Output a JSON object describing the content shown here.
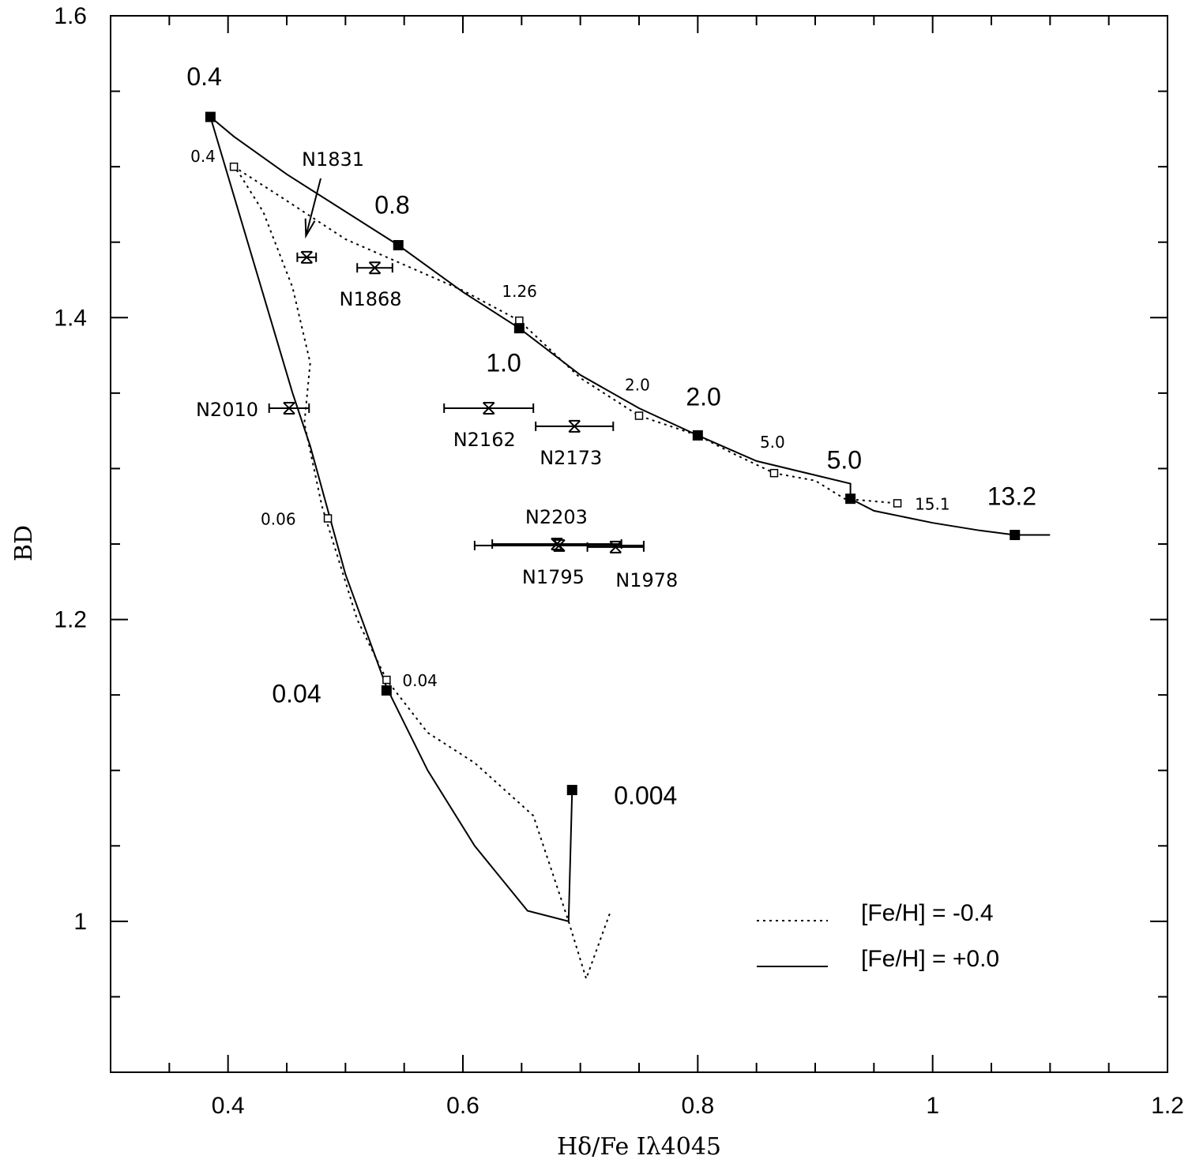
{
  "chart_data": {
    "type": "line",
    "xlabel": "Hδ/Fe Iλ4045",
    "ylabel": "BD",
    "xlim": [
      0.3,
      1.2
    ],
    "ylim": [
      0.9,
      1.6
    ],
    "x_ticks": [
      "0.4",
      "0.6",
      "0.8",
      "1",
      "1.2"
    ],
    "y_ticks": [
      "1",
      "1.2",
      "1.4",
      "1.6"
    ],
    "grid": false,
    "legend_position": "bottom-right",
    "series": [
      {
        "name": "[Fe/H] = -0.4",
        "style": "dotted",
        "line": [
          [
            0.725,
            1.005
          ],
          [
            0.705,
            0.962
          ],
          [
            0.69,
            1.0
          ],
          [
            0.66,
            1.07
          ],
          [
            0.61,
            1.105
          ],
          [
            0.57,
            1.125
          ],
          [
            0.535,
            1.16
          ],
          [
            0.51,
            1.2
          ],
          [
            0.48,
            1.275
          ],
          [
            0.465,
            1.33
          ],
          [
            0.47,
            1.37
          ],
          [
            0.455,
            1.42
          ],
          [
            0.43,
            1.47
          ],
          [
            0.41,
            1.495
          ],
          [
            0.405,
            1.5
          ],
          [
            0.445,
            1.48
          ],
          [
            0.5,
            1.452
          ],
          [
            0.55,
            1.435
          ],
          [
            0.6,
            1.418
          ],
          [
            0.648,
            1.398
          ],
          [
            0.7,
            1.36
          ],
          [
            0.75,
            1.335
          ],
          [
            0.8,
            1.322
          ],
          [
            0.83,
            1.31
          ],
          [
            0.865,
            1.297
          ],
          [
            0.9,
            1.292
          ],
          [
            0.925,
            1.28
          ],
          [
            0.97,
            1.277
          ]
        ],
        "markers": [
          {
            "x": 0.405,
            "y": 1.5,
            "label": "0.4"
          },
          {
            "x": 0.648,
            "y": 1.398,
            "label": "1.26"
          },
          {
            "x": 0.75,
            "y": 1.335,
            "label": "2.0"
          },
          {
            "x": 0.865,
            "y": 1.297,
            "label": "5.0"
          },
          {
            "x": 0.97,
            "y": 1.277,
            "label": "15.1"
          },
          {
            "x": 0.485,
            "y": 1.267,
            "label": "0.06"
          },
          {
            "x": 0.535,
            "y": 1.16,
            "label": "0.04"
          }
        ]
      },
      {
        "name": "[Fe/H] = +0.0",
        "style": "solid",
        "line": [
          [
            0.693,
            1.087
          ],
          [
            0.69,
            1.0
          ],
          [
            0.655,
            1.007
          ],
          [
            0.61,
            1.05
          ],
          [
            0.57,
            1.1
          ],
          [
            0.535,
            1.155
          ],
          [
            0.5,
            1.23
          ],
          [
            0.47,
            1.315
          ],
          [
            0.455,
            1.35
          ],
          [
            0.385,
            1.533
          ],
          [
            0.405,
            1.52
          ],
          [
            0.45,
            1.495
          ],
          [
            0.545,
            1.448
          ],
          [
            0.6,
            1.417
          ],
          [
            0.648,
            1.393
          ],
          [
            0.7,
            1.362
          ],
          [
            0.75,
            1.34
          ],
          [
            0.8,
            1.322
          ],
          [
            0.85,
            1.305
          ],
          [
            0.93,
            1.29
          ],
          [
            0.93,
            1.28
          ],
          [
            0.95,
            1.272
          ],
          [
            1.0,
            1.264
          ],
          [
            1.04,
            1.259
          ],
          [
            1.07,
            1.256
          ],
          [
            1.1,
            1.256
          ]
        ],
        "markers": [
          {
            "x": 0.385,
            "y": 1.533,
            "label": "0.4"
          },
          {
            "x": 0.545,
            "y": 1.448,
            "label": "0.8"
          },
          {
            "x": 0.648,
            "y": 1.393,
            "label": "1.0"
          },
          {
            "x": 0.8,
            "y": 1.322,
            "label": "2.0"
          },
          {
            "x": 0.93,
            "y": 1.28,
            "label": "5.0"
          },
          {
            "x": 1.07,
            "y": 1.256,
            "label": "13.2"
          },
          {
            "x": 0.535,
            "y": 1.153,
            "label": "0.04"
          },
          {
            "x": 0.693,
            "y": 1.087,
            "label": "0.004"
          }
        ]
      }
    ],
    "clusters": [
      {
        "name": "N1831",
        "x": 0.467,
        "y": 1.44,
        "xerr": 0.008
      },
      {
        "name": "N1868",
        "x": 0.525,
        "y": 1.433,
        "xerr": 0.015
      },
      {
        "name": "N2010",
        "x": 0.452,
        "y": 1.34,
        "xerr": 0.017
      },
      {
        "name": "N2162",
        "x": 0.622,
        "y": 1.34,
        "xerr": 0.038
      },
      {
        "name": "N2173",
        "x": 0.695,
        "y": 1.328,
        "xerr": 0.033
      },
      {
        "name": "N2203",
        "x": 0.68,
        "y": 1.25,
        "xerr": 0.055
      },
      {
        "name": "N1795",
        "x": 0.682,
        "y": 1.249,
        "xerr": 0.072
      },
      {
        "name": "N1978",
        "x": 0.73,
        "y": 1.248,
        "xerr": 0.024
      }
    ],
    "annotations": [
      {
        "text": "N1831",
        "arrow_to": [
          0.465,
          1.45
        ]
      }
    ]
  }
}
